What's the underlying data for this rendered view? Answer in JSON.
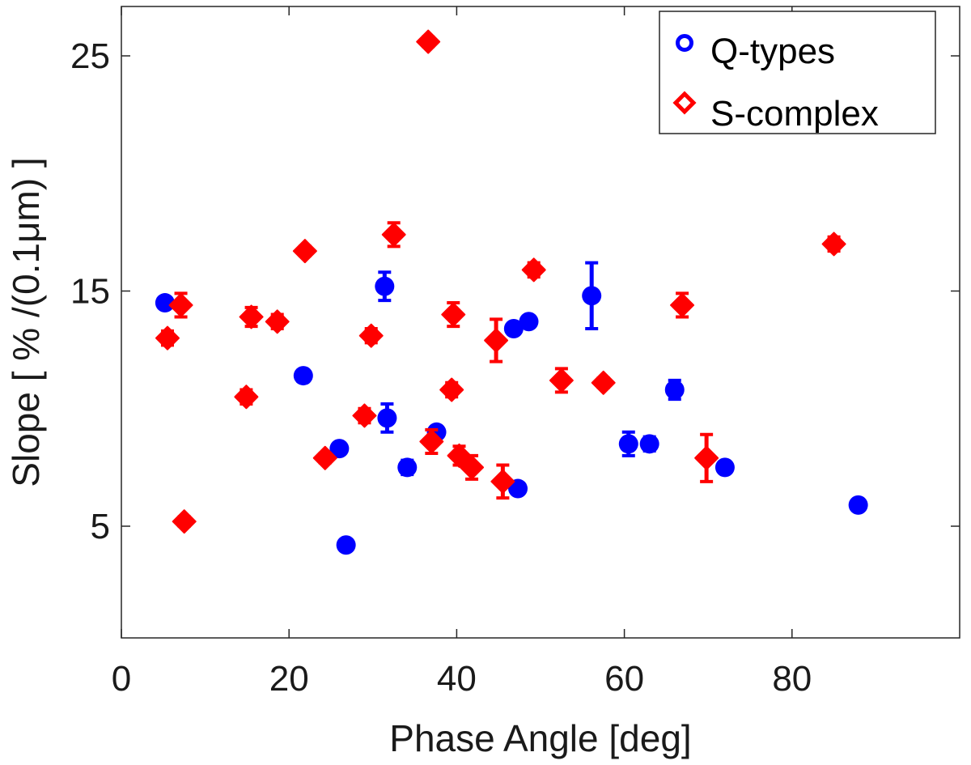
{
  "chart_data": {
    "type": "scatter",
    "xlabel": "Phase Angle [deg]",
    "ylabel": "Slope [ % /(0.1μm) ]",
    "xlim": [
      0,
      100
    ],
    "ylim": [
      0.25,
      27.1
    ],
    "xticks": [
      0,
      20,
      40,
      60,
      80
    ],
    "yticks": [
      5,
      15,
      25
    ],
    "xtick_labels": [
      "0",
      "20",
      "40",
      "60",
      "80"
    ],
    "ytick_labels": [
      "5",
      "15",
      "25"
    ],
    "grid": false,
    "legend_position": "top-right",
    "series": [
      {
        "name": "Q-types",
        "marker": "circle",
        "color": "#0000ff",
        "points": [
          {
            "x": 5.2,
            "y": 14.5,
            "err": 0.2
          },
          {
            "x": 21.7,
            "y": 11.4,
            "err": 0.2
          },
          {
            "x": 26.0,
            "y": 8.3,
            "err": 0.2
          },
          {
            "x": 26.8,
            "y": 4.2,
            "err": 0.2
          },
          {
            "x": 31.4,
            "y": 15.2,
            "err": 0.6
          },
          {
            "x": 31.7,
            "y": 9.6,
            "err": 0.6
          },
          {
            "x": 34.1,
            "y": 7.5,
            "err": 0.3
          },
          {
            "x": 37.6,
            "y": 9.0,
            "err": 0.2
          },
          {
            "x": 46.8,
            "y": 13.4,
            "err": 0.2
          },
          {
            "x": 47.3,
            "y": 6.6,
            "err": 0.2
          },
          {
            "x": 48.6,
            "y": 13.7,
            "err": 0.2
          },
          {
            "x": 56.1,
            "y": 14.8,
            "err": 1.4
          },
          {
            "x": 60.5,
            "y": 8.5,
            "err": 0.5
          },
          {
            "x": 63.0,
            "y": 8.5,
            "err": 0.3
          },
          {
            "x": 66.0,
            "y": 10.8,
            "err": 0.4
          },
          {
            "x": 72.0,
            "y": 7.5,
            "err": 0.2
          },
          {
            "x": 87.9,
            "y": 5.9,
            "err": 0.2
          }
        ]
      },
      {
        "name": "S-complex",
        "marker": "diamond",
        "color": "#ff0000",
        "points": [
          {
            "x": 5.5,
            "y": 13.0,
            "err": 0.3
          },
          {
            "x": 7.1,
            "y": 14.4,
            "err": 0.5
          },
          {
            "x": 7.5,
            "y": 5.2,
            "err": 0.2
          },
          {
            "x": 14.9,
            "y": 10.5,
            "err": 0.3
          },
          {
            "x": 15.5,
            "y": 13.9,
            "err": 0.4
          },
          {
            "x": 18.6,
            "y": 13.7,
            "err": 0.3
          },
          {
            "x": 21.9,
            "y": 16.7,
            "err": 0.2
          },
          {
            "x": 24.3,
            "y": 7.9,
            "err": 0.2
          },
          {
            "x": 29.0,
            "y": 9.7,
            "err": 0.3
          },
          {
            "x": 29.8,
            "y": 13.1,
            "err": 0.3
          },
          {
            "x": 32.5,
            "y": 17.4,
            "err": 0.5
          },
          {
            "x": 36.6,
            "y": 25.6,
            "err": 0.2
          },
          {
            "x": 37.0,
            "y": 8.6,
            "err": 0.5
          },
          {
            "x": 39.4,
            "y": 10.8,
            "err": 0.3
          },
          {
            "x": 39.6,
            "y": 14.0,
            "err": 0.5
          },
          {
            "x": 40.3,
            "y": 8.0,
            "err": 0.4
          },
          {
            "x": 41.8,
            "y": 7.5,
            "err": 0.5
          },
          {
            "x": 44.7,
            "y": 12.9,
            "err": 0.9
          },
          {
            "x": 45.5,
            "y": 6.9,
            "err": 0.7
          },
          {
            "x": 49.2,
            "y": 15.9,
            "err": 0.3
          },
          {
            "x": 52.5,
            "y": 11.2,
            "err": 0.5
          },
          {
            "x": 57.5,
            "y": 11.1,
            "err": 0.2
          },
          {
            "x": 66.9,
            "y": 14.4,
            "err": 0.5
          },
          {
            "x": 69.8,
            "y": 7.9,
            "err": 1.0
          },
          {
            "x": 85.0,
            "y": 17.0,
            "err": 0.3
          }
        ]
      }
    ]
  }
}
